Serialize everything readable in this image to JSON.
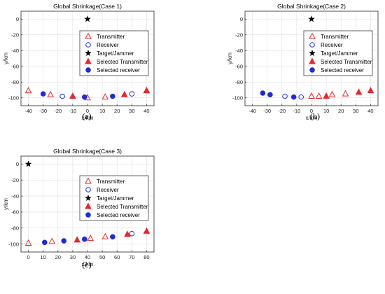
{
  "chart_data": [
    {
      "type": "scatter",
      "title": "Global Shrinkage(Case 1)",
      "caption": "(a)",
      "xlabel": "x/km",
      "ylabel": "y/km",
      "xlim": [
        -45,
        45
      ],
      "ylim": [
        -110,
        10
      ],
      "xticks": [
        -40,
        -30,
        -20,
        -10,
        0,
        10,
        20,
        30,
        40
      ],
      "yticks": [
        0,
        -20,
        -40,
        -60,
        -80,
        -100
      ],
      "grid": true,
      "legend_position": "center-right",
      "series": [
        {
          "name": "Transmitter",
          "marker": "triangle-open",
          "color": "#e8262b",
          "points": [
            [
              -40,
              -91
            ],
            [
              -25,
              -96
            ],
            [
              0,
              -100
            ],
            [
              12,
              -99
            ],
            [
              40,
              -91
            ]
          ]
        },
        {
          "name": "Receiver",
          "marker": "circle-open",
          "color": "#1f2bd9",
          "points": [
            [
              -17,
              -98
            ],
            [
              30,
              -95
            ]
          ]
        },
        {
          "name": "Target/Jammer",
          "marker": "star",
          "color": "#000000",
          "points": [
            [
              0,
              0
            ]
          ]
        },
        {
          "name": "Selected Transmitter",
          "marker": "triangle-filled",
          "color": "#e8262b",
          "points": [
            [
              -10,
              -98
            ],
            [
              25,
              -96
            ],
            [
              40,
              -91
            ]
          ]
        },
        {
          "name": "Selected receiver",
          "marker": "circle-filled",
          "color": "#1f2bd9",
          "points": [
            [
              -30,
              -95
            ],
            [
              -2,
              -99
            ],
            [
              17,
              -98
            ]
          ]
        }
      ]
    },
    {
      "type": "scatter",
      "title": "Global Shrinkage(Case 2)",
      "caption": "(b)",
      "xlabel": "x/km",
      "ylabel": "y/km",
      "xlim": [
        -45,
        45
      ],
      "ylim": [
        -110,
        10
      ],
      "xticks": [
        -40,
        -30,
        -20,
        -10,
        0,
        10,
        20,
        30,
        40
      ],
      "yticks": [
        0,
        -20,
        -40,
        -60,
        -80,
        -100
      ],
      "grid": true,
      "legend_position": "center-right",
      "series": [
        {
          "name": "Transmitter",
          "marker": "triangle-open",
          "color": "#e8262b",
          "points": [
            [
              0,
              -98
            ],
            [
              5,
              -98
            ],
            [
              14,
              -96
            ],
            [
              23,
              -95
            ]
          ]
        },
        {
          "name": "Receiver",
          "marker": "circle-open",
          "color": "#1f2bd9",
          "points": [
            [
              -18,
              -98
            ],
            [
              -7,
              -99
            ]
          ]
        },
        {
          "name": "Target/Jammer",
          "marker": "star",
          "color": "#000000",
          "points": [
            [
              0,
              0
            ]
          ]
        },
        {
          "name": "Selected Transmitter",
          "marker": "triangle-filled",
          "color": "#e8262b",
          "points": [
            [
              10,
              -98
            ],
            [
              32,
              -93
            ],
            [
              40,
              -91
            ]
          ]
        },
        {
          "name": "Selected receiver",
          "marker": "circle-filled",
          "color": "#1f2bd9",
          "points": [
            [
              -33,
              -94
            ],
            [
              -28,
              -96
            ],
            [
              -12,
              -99
            ]
          ]
        }
      ]
    },
    {
      "type": "scatter",
      "title": "Global Shrinkage(Case 3)",
      "caption": "(c)",
      "xlabel": "x/km",
      "ylabel": "y/km",
      "xlim": [
        -5,
        85
      ],
      "ylim": [
        -110,
        10
      ],
      "xticks": [
        0,
        10,
        20,
        30,
        40,
        50,
        60,
        70,
        80
      ],
      "yticks": [
        0,
        -20,
        -40,
        -60,
        -80,
        -100
      ],
      "grid": true,
      "legend_position": "center-right",
      "series": [
        {
          "name": "Transmitter",
          "marker": "triangle-open",
          "color": "#e8262b",
          "points": [
            [
              0,
              -99
            ],
            [
              16,
              -97
            ],
            [
              42,
              -93
            ],
            [
              52,
              -91
            ]
          ]
        },
        {
          "name": "Receiver",
          "marker": "circle-open",
          "color": "#1f2bd9",
          "points": [
            [
              70,
              -87
            ]
          ]
        },
        {
          "name": "Target/Jammer",
          "marker": "star",
          "color": "#000000",
          "points": [
            [
              0,
              0
            ]
          ]
        },
        {
          "name": "Selected Transmitter",
          "marker": "triangle-filled",
          "color": "#e8262b",
          "points": [
            [
              33,
              -95
            ],
            [
              67,
              -88
            ],
            [
              80,
              -84
            ]
          ]
        },
        {
          "name": "Selected receiver",
          "marker": "circle-filled",
          "color": "#1f2bd9",
          "points": [
            [
              11,
              -98
            ],
            [
              24,
              -96
            ],
            [
              38,
              -94
            ],
            [
              57,
              -91
            ]
          ]
        }
      ]
    }
  ]
}
